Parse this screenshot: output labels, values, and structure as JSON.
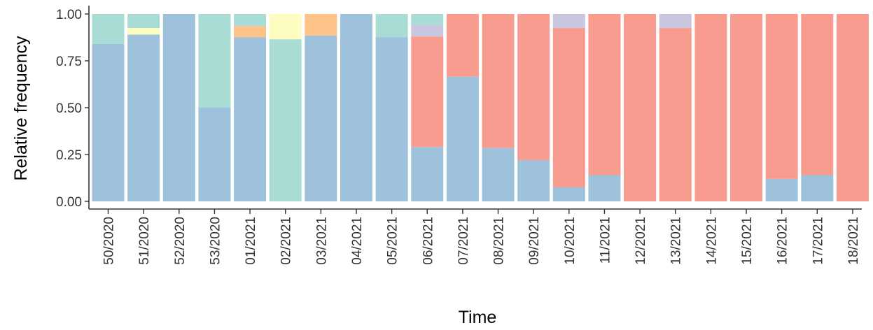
{
  "chart_data": {
    "type": "bar",
    "stacked": true,
    "title": "",
    "xlabel": "Time",
    "ylabel": "Relative frequency",
    "ylim": [
      0,
      1
    ],
    "yticks": [
      "0.00",
      "0.25",
      "0.50",
      "0.75",
      "1.00"
    ],
    "grid": false,
    "legend": "none",
    "categories": [
      "50/2020",
      "51/2020",
      "52/2020",
      "53/2020",
      "01/2021",
      "02/2021",
      "03/2021",
      "04/2021",
      "05/2021",
      "06/2021",
      "07/2021",
      "08/2021",
      "09/2021",
      "10/2021",
      "11/2021",
      "12/2021",
      "13/2021",
      "14/2021",
      "15/2021",
      "16/2021",
      "17/2021",
      "18/2021"
    ],
    "series": [
      {
        "color": "#9ec2dc",
        "values": [
          0.84,
          0.89,
          1.0,
          0.5,
          0.875,
          0.0,
          0.885,
          1.0,
          0.875,
          0.29,
          0.665,
          0.285,
          0.22,
          0.075,
          0.14,
          0.0,
          0.0,
          0.0,
          0.0,
          0.12,
          0.14,
          0.0
        ]
      },
      {
        "color": "#a8dcd4",
        "values": [
          0.0,
          0.0,
          0.0,
          0.0,
          0.0,
          0.865,
          0.0,
          0.0,
          0.0,
          0.0,
          0.0,
          0.0,
          0.0,
          0.0,
          0.0,
          0.0,
          0.0,
          0.0,
          0.0,
          0.0,
          0.0,
          0.0
        ]
      },
      {
        "color": "#f79c8f",
        "values": [
          0.0,
          0.0,
          0.0,
          0.0,
          0.0,
          0.0,
          0.0,
          0.0,
          0.0,
          0.59,
          0.335,
          0.715,
          0.78,
          0.85,
          0.86,
          1.0,
          0.925,
          1.0,
          1.0,
          0.88,
          0.86,
          1.0
        ]
      },
      {
        "color": "#c9c6e0",
        "values": [
          0.0,
          0.0,
          0.0,
          0.0,
          0.0,
          0.0,
          0.0,
          0.0,
          0.0,
          0.06,
          0.0,
          0.0,
          0.0,
          0.075,
          0.0,
          0.0,
          0.075,
          0.0,
          0.0,
          0.0,
          0.0,
          0.0
        ]
      },
      {
        "color": "#fdfdc2",
        "values": [
          0.0,
          0.035,
          0.0,
          0.0,
          0.0,
          0.135,
          0.0,
          0.0,
          0.0,
          0.0,
          0.0,
          0.0,
          0.0,
          0.0,
          0.0,
          0.0,
          0.0,
          0.0,
          0.0,
          0.0,
          0.0,
          0.0
        ]
      },
      {
        "color": "#fdc389",
        "values": [
          0.0,
          0.0,
          0.0,
          0.0,
          0.06,
          0.0,
          0.115,
          0.0,
          0.0,
          0.0,
          0.0,
          0.0,
          0.0,
          0.0,
          0.0,
          0.0,
          0.0,
          0.0,
          0.0,
          0.0,
          0.0,
          0.0
        ]
      },
      {
        "color": "#a8dcd4",
        "values": [
          0.16,
          0.075,
          0.0,
          0.5,
          0.065,
          0.0,
          0.0,
          0.0,
          0.125,
          0.06,
          0.0,
          0.0,
          0.0,
          0.0,
          0.0,
          0.0,
          0.0,
          0.0,
          0.0,
          0.0,
          0.0,
          0.0
        ]
      }
    ]
  }
}
